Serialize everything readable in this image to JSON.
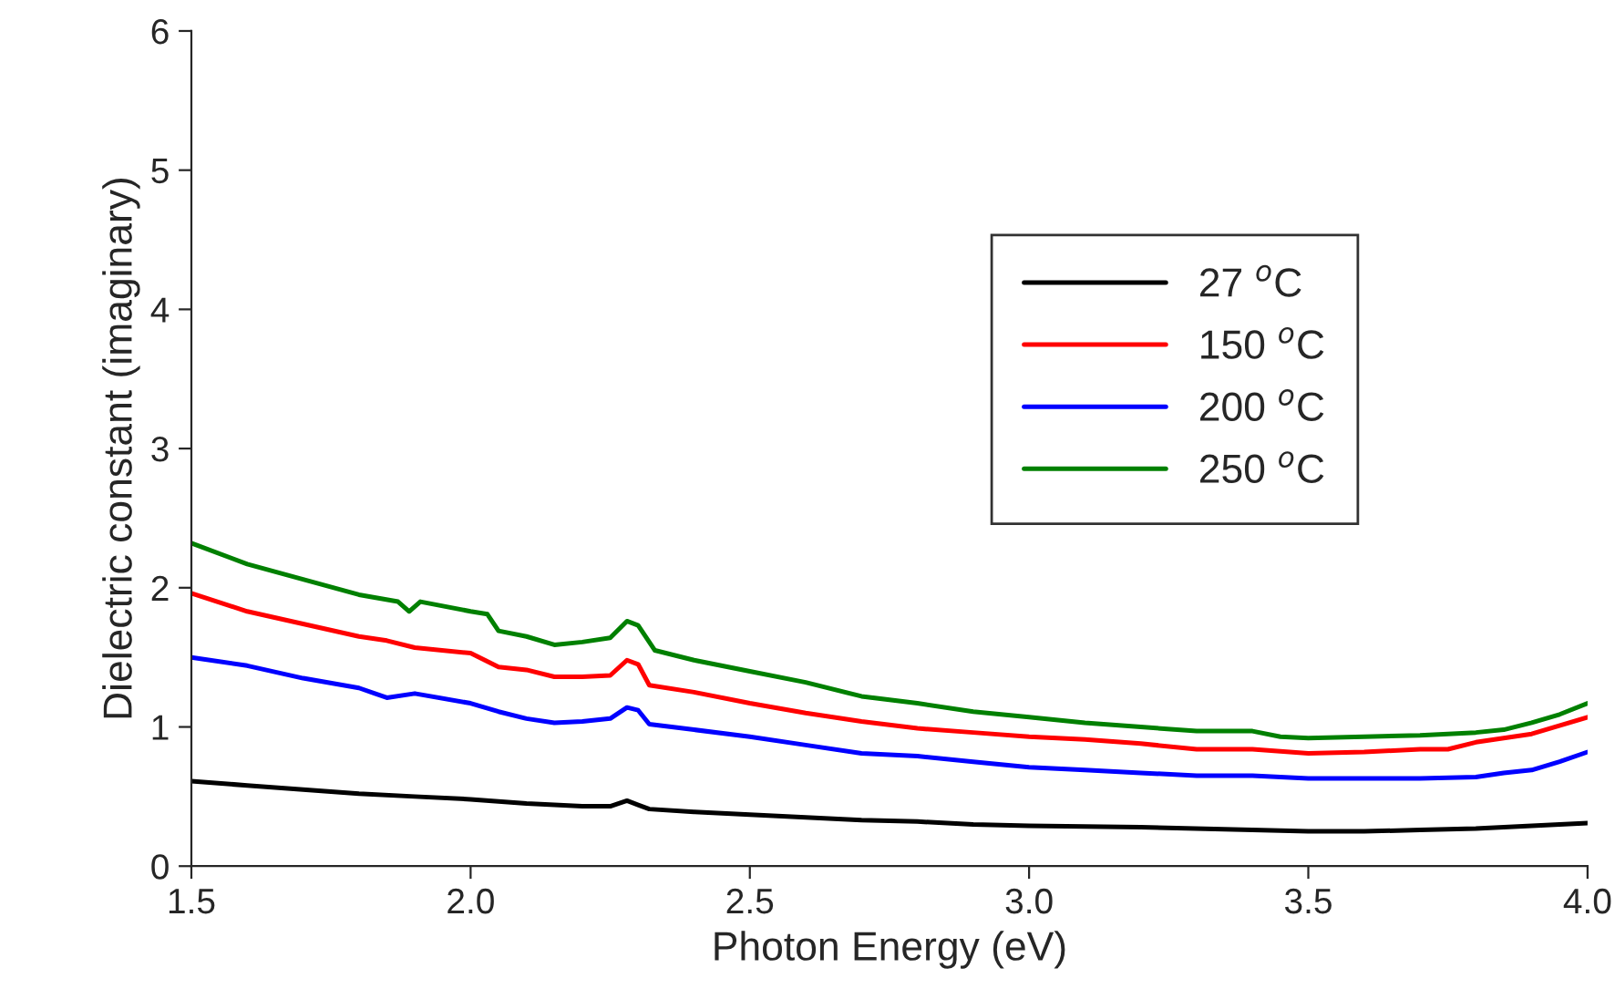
{
  "chart_data": {
    "type": "line",
    "xlabel": "Photon Energy (eV)",
    "ylabel": "Dielectric constant (imaginary)",
    "xlim": [
      1.5,
      4.0
    ],
    "xticks": [
      {
        "value": 1.5,
        "label": "1.5"
      },
      {
        "value": 2.0,
        "label": "2.0"
      },
      {
        "value": 2.5,
        "label": "2.5"
      },
      {
        "value": 3.0,
        "label": "3.0"
      },
      {
        "value": 3.5,
        "label": "3.5"
      },
      {
        "value": 4.0,
        "label": "4.0"
      }
    ],
    "ylim": [
      0,
      6
    ],
    "yticks": [
      0,
      1,
      2,
      3,
      4,
      5,
      6
    ],
    "grid": false,
    "legend": "top right",
    "marker": "none",
    "line_style": "solid",
    "series": [
      {
        "name": "27 $^{o}$C",
        "color": "#000000",
        "x": [
          1.5,
          1.6,
          1.7,
          1.8,
          1.9,
          2.0,
          2.1,
          2.2,
          2.25,
          2.28,
          2.3,
          2.32,
          2.4,
          2.5,
          2.6,
          2.7,
          2.8,
          2.9,
          3.0,
          3.2,
          3.4,
          3.5,
          3.6,
          3.7,
          3.8,
          3.9,
          4.0
        ],
        "values": [
          0.61,
          0.58,
          0.55,
          0.52,
          0.5,
          0.48,
          0.45,
          0.43,
          0.43,
          0.47,
          0.44,
          0.41,
          0.39,
          0.37,
          0.35,
          0.33,
          0.32,
          0.3,
          0.29,
          0.28,
          0.26,
          0.25,
          0.25,
          0.26,
          0.27,
          0.29,
          0.31
        ]
      },
      {
        "name": "150 $^{o}$C",
        "color": "#ff0000",
        "x": [
          1.5,
          1.6,
          1.7,
          1.8,
          1.85,
          1.9,
          2.0,
          2.05,
          2.1,
          2.15,
          2.2,
          2.25,
          2.28,
          2.3,
          2.32,
          2.4,
          2.5,
          2.6,
          2.7,
          2.8,
          2.9,
          3.0,
          3.1,
          3.2,
          3.3,
          3.4,
          3.5,
          3.6,
          3.7,
          3.75,
          3.8,
          3.9,
          4.0
        ],
        "values": [
          1.96,
          1.83,
          1.74,
          1.65,
          1.62,
          1.57,
          1.53,
          1.43,
          1.41,
          1.36,
          1.36,
          1.37,
          1.48,
          1.45,
          1.3,
          1.25,
          1.17,
          1.1,
          1.04,
          0.99,
          0.96,
          0.93,
          0.91,
          0.88,
          0.84,
          0.84,
          0.81,
          0.82,
          0.84,
          0.84,
          0.89,
          0.95,
          1.07
        ]
      },
      {
        "name": "200 $^{o}$C",
        "color": "#0000ff",
        "x": [
          1.5,
          1.6,
          1.7,
          1.8,
          1.85,
          1.9,
          2.0,
          2.05,
          2.1,
          2.15,
          2.2,
          2.25,
          2.28,
          2.3,
          2.32,
          2.4,
          2.5,
          2.6,
          2.7,
          2.8,
          2.9,
          3.0,
          3.1,
          3.2,
          3.3,
          3.4,
          3.5,
          3.6,
          3.7,
          3.8,
          3.85,
          3.9,
          3.95,
          4.0
        ],
        "values": [
          1.5,
          1.44,
          1.35,
          1.28,
          1.21,
          1.24,
          1.17,
          1.11,
          1.06,
          1.03,
          1.04,
          1.06,
          1.14,
          1.12,
          1.02,
          0.98,
          0.93,
          0.87,
          0.81,
          0.79,
          0.75,
          0.71,
          0.69,
          0.67,
          0.65,
          0.65,
          0.63,
          0.63,
          0.63,
          0.64,
          0.67,
          0.69,
          0.75,
          0.82
        ]
      },
      {
        "name": "250 $^{o}$C",
        "color": "#008000",
        "x": [
          1.5,
          1.6,
          1.7,
          1.8,
          1.87,
          1.89,
          1.91,
          2.0,
          2.03,
          2.05,
          2.1,
          2.15,
          2.2,
          2.25,
          2.28,
          2.3,
          2.33,
          2.4,
          2.5,
          2.6,
          2.7,
          2.8,
          2.9,
          3.0,
          3.1,
          3.2,
          3.3,
          3.4,
          3.45,
          3.5,
          3.6,
          3.7,
          3.8,
          3.85,
          3.9,
          3.95,
          4.0
        ],
        "values": [
          2.32,
          2.17,
          2.06,
          1.95,
          1.9,
          1.83,
          1.9,
          1.83,
          1.81,
          1.69,
          1.65,
          1.59,
          1.61,
          1.64,
          1.76,
          1.73,
          1.55,
          1.48,
          1.4,
          1.32,
          1.22,
          1.17,
          1.11,
          1.07,
          1.03,
          1.0,
          0.97,
          0.97,
          0.93,
          0.92,
          0.93,
          0.94,
          0.96,
          0.98,
          1.03,
          1.09,
          1.17
        ]
      }
    ]
  }
}
